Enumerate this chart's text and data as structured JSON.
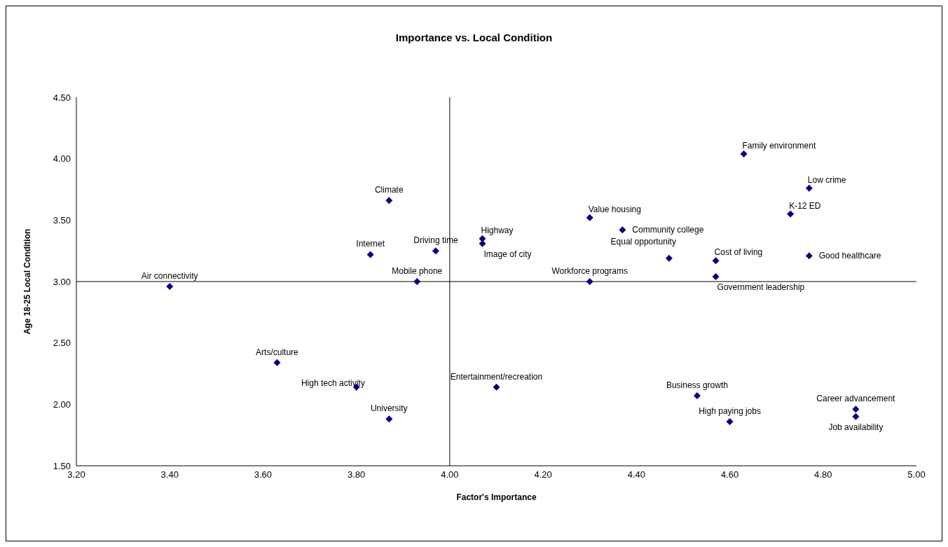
{
  "chart_data": {
    "type": "scatter",
    "title": "Importance vs. Local Condition",
    "xlabel": "Factor's Importance",
    "ylabel": "Age 18-25 Local Condition",
    "x": [
      3.4,
      3.63,
      3.8,
      3.87,
      3.87,
      3.83,
      3.97,
      3.93,
      4.1,
      4.07,
      4.07,
      4.3,
      4.37,
      4.3,
      4.47,
      4.57,
      4.57,
      4.63,
      4.77,
      4.73,
      4.77,
      4.53,
      4.6,
      4.87,
      4.87
    ],
    "values": [
      2.96,
      2.34,
      2.14,
      1.88,
      3.66,
      3.22,
      3.25,
      3.0,
      2.14,
      3.35,
      3.31,
      3.52,
      3.42,
      3.0,
      3.19,
      3.17,
      3.04,
      4.04,
      3.76,
      3.55,
      3.21,
      2.07,
      1.86,
      1.96,
      1.9
    ],
    "color": "#000080",
    "marker": "diamond",
    "grid": false,
    "legend": false,
    "xlim": [
      3.2,
      5.0
    ],
    "xticks": [
      {
        "value": 3.2,
        "label": "3.20"
      },
      {
        "value": 3.4,
        "label": "3.40"
      },
      {
        "value": 3.6,
        "label": "3.60"
      },
      {
        "value": 3.8,
        "label": "3.80"
      },
      {
        "value": 4.0,
        "label": "4.00"
      },
      {
        "value": 4.2,
        "label": "4.20"
      },
      {
        "value": 4.4,
        "label": "4.40"
      },
      {
        "value": 4.6,
        "label": "4.60"
      },
      {
        "value": 4.8,
        "label": "4.80"
      },
      {
        "value": 5.0,
        "label": "5.00"
      }
    ],
    "ylim": [
      1.5,
      4.5
    ],
    "yticks": [
      {
        "value": 1.5,
        "label": "1.50"
      },
      {
        "value": 2.0,
        "label": "2.00"
      },
      {
        "value": 2.5,
        "label": "2.50"
      },
      {
        "value": 3.0,
        "label": "3.00"
      },
      {
        "value": 3.5,
        "label": "3.50"
      },
      {
        "value": 4.0,
        "label": "4.00"
      },
      {
        "value": 4.5,
        "label": "4.50"
      }
    ],
    "ref_lines": [
      {
        "axis": "x",
        "value": 4.0,
        "color": "#000000"
      },
      {
        "axis": "y",
        "value": 3.0,
        "color": "#000000"
      }
    ],
    "annotations": [
      {
        "text": "Air connectivity",
        "x": 3.4,
        "y": 2.96
      },
      {
        "text": "Arts/culture",
        "x": 3.63,
        "y": 2.34
      },
      {
        "text": "High tech activity",
        "x": 3.8,
        "y": 2.14
      },
      {
        "text": "University",
        "x": 3.87,
        "y": 1.88
      },
      {
        "text": "Climate",
        "x": 3.87,
        "y": 3.66
      },
      {
        "text": "Internet",
        "x": 3.83,
        "y": 3.22
      },
      {
        "text": "Driving time",
        "x": 3.97,
        "y": 3.25
      },
      {
        "text": "Mobile phone",
        "x": 3.93,
        "y": 3.0
      },
      {
        "text": "Entertainment/recreation",
        "x": 4.1,
        "y": 2.14
      },
      {
        "text": "Highway",
        "x": 4.07,
        "y": 3.35
      },
      {
        "text": "Image of city",
        "x": 4.07,
        "y": 3.31
      },
      {
        "text": "Value housing",
        "x": 4.3,
        "y": 3.52
      },
      {
        "text": "Community college",
        "x": 4.37,
        "y": 3.42
      },
      {
        "text": "Workforce programs",
        "x": 4.3,
        "y": 3.0
      },
      {
        "text": "Equal opportunity",
        "x": 4.47,
        "y": 3.19
      },
      {
        "text": "Cost of living",
        "x": 4.57,
        "y": 3.17
      },
      {
        "text": "Government leadership",
        "x": 4.57,
        "y": 3.04
      },
      {
        "text": "Family environment",
        "x": 4.63,
        "y": 4.04
      },
      {
        "text": "Low crime",
        "x": 4.77,
        "y": 3.76
      },
      {
        "text": "K-12 ED",
        "x": 4.73,
        "y": 3.55
      },
      {
        "text": "Good healthcare",
        "x": 4.77,
        "y": 3.21
      },
      {
        "text": "Business growth",
        "x": 4.53,
        "y": 2.07
      },
      {
        "text": "High paying jobs",
        "x": 4.6,
        "y": 1.86
      },
      {
        "text": "Career advancement",
        "x": 4.87,
        "y": 1.96
      },
      {
        "text": "Job availability",
        "x": 4.87,
        "y": 1.9
      }
    ]
  }
}
